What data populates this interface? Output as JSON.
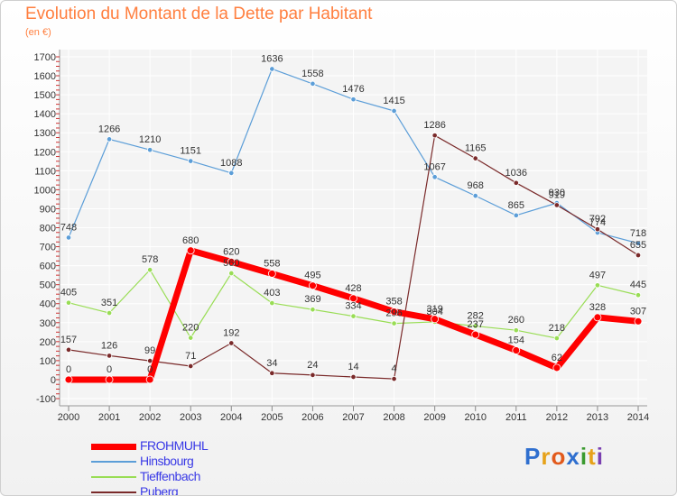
{
  "title": "Evolution du Montant de la Dette par Habitant",
  "unit": "(en €)",
  "logo": {
    "text": "Proxiti",
    "letters": [
      "P",
      "r",
      "o",
      "x",
      "i",
      "t",
      "i"
    ],
    "colors": [
      "#2f6fcf",
      "#e6a21a",
      "#e25a1c",
      "#2f6fcf",
      "#3a9a2f",
      "#e6a21a",
      "#7a3fb0"
    ]
  },
  "chart_data": {
    "type": "line",
    "title": "Evolution du Montant de la Dette par Habitant",
    "ylabel": "(en €)",
    "x": [
      "2000",
      "2001",
      "2002",
      "2003",
      "2004",
      "2005",
      "2006",
      "2007",
      "2008",
      "2009",
      "2010",
      "2011",
      "2012",
      "2013",
      "2014"
    ],
    "ylim": [
      -100,
      1700
    ],
    "yticks": [
      -100,
      0,
      100,
      200,
      300,
      400,
      500,
      600,
      700,
      800,
      900,
      1000,
      1100,
      1200,
      1300,
      1400,
      1500,
      1600,
      1700
    ],
    "grid": true,
    "series": [
      {
        "name": "Hinsbourg",
        "color": "#5c9ed8",
        "width": 1.2,
        "marker": 5.5,
        "values": [
          748,
          1266,
          1210,
          1151,
          1088,
          1636,
          1558,
          1476,
          1415,
          1067,
          968,
          865,
          930,
          774,
          718
        ],
        "labels": [
          "748",
          "1266",
          "1210",
          "1151",
          "1088",
          "1636",
          "1558",
          "1476",
          "1415",
          "1067",
          "968",
          "865",
          "930",
          "774",
          "718"
        ]
      },
      {
        "name": "Tieffenbach",
        "color": "#99dd55",
        "width": 1.2,
        "marker": 5.5,
        "values": [
          405,
          351,
          578,
          220,
          560,
          403,
          369,
          334,
          296,
          304,
          282,
          260,
          218,
          497,
          445
        ],
        "labels": [
          "405",
          "351",
          "578",
          "220",
          "560",
          "403",
          "369",
          "334",
          "296",
          "304",
          "282",
          "260",
          "218",
          "497",
          "445"
        ]
      },
      {
        "name": "Puberg",
        "color": "#7a2a2a",
        "width": 1.2,
        "marker": 5.5,
        "values": [
          157,
          126,
          99,
          71,
          192,
          34,
          24,
          14,
          4,
          1286,
          1165,
          1036,
          919,
          792,
          655
        ],
        "labels": [
          "157",
          "126",
          "99",
          "71",
          "192",
          "34",
          "24",
          "14",
          "4",
          "1286",
          "1165",
          "1036",
          "919",
          "792",
          "655"
        ]
      },
      {
        "name": "FROHMUHL",
        "color": "#ff0000",
        "width": 7,
        "marker": 8,
        "values": [
          0,
          0,
          0,
          680,
          620,
          558,
          495,
          428,
          358,
          319,
          237,
          154,
          62,
          328,
          307
        ],
        "labels": [
          "0",
          "0",
          "0",
          "680",
          "620",
          "558",
          "495",
          "428",
          "358",
          "319",
          "237",
          "154",
          "62",
          "328",
          "307"
        ]
      }
    ]
  },
  "legend": [
    {
      "label": "FROHMUHL",
      "color": "#ff0000",
      "thickness": 7
    },
    {
      "label": "Hinsbourg",
      "color": "#5c9ed8",
      "thickness": 2
    },
    {
      "label": "Tieffenbach",
      "color": "#99dd55",
      "thickness": 2
    },
    {
      "label": "Puberg",
      "color": "#7a2a2a",
      "thickness": 2
    }
  ]
}
